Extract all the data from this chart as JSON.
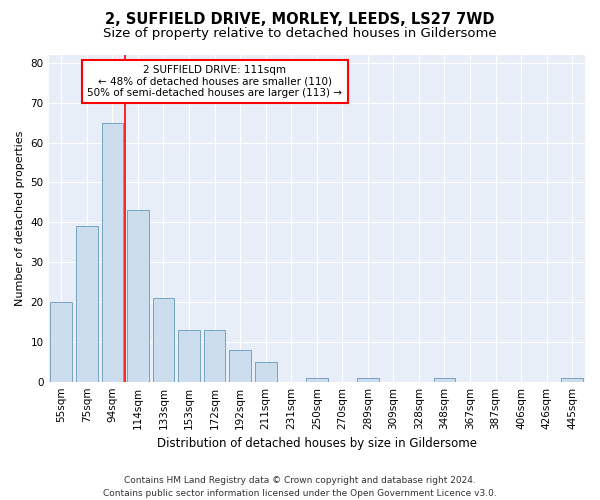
{
  "title1": "2, SUFFIELD DRIVE, MORLEY, LEEDS, LS27 7WD",
  "title2": "Size of property relative to detached houses in Gildersome",
  "xlabel": "Distribution of detached houses by size in Gildersome",
  "ylabel": "Number of detached properties",
  "categories": [
    "55sqm",
    "75sqm",
    "94sqm",
    "114sqm",
    "133sqm",
    "153sqm",
    "172sqm",
    "192sqm",
    "211sqm",
    "231sqm",
    "250sqm",
    "270sqm",
    "289sqm",
    "309sqm",
    "328sqm",
    "348sqm",
    "367sqm",
    "387sqm",
    "406sqm",
    "426sqm",
    "445sqm"
  ],
  "values": [
    20,
    39,
    65,
    43,
    21,
    13,
    13,
    8,
    5,
    0,
    1,
    0,
    1,
    0,
    0,
    1,
    0,
    0,
    0,
    0,
    1
  ],
  "bar_color": "#ccdded",
  "bar_edge_color": "#6699bb",
  "redline_x": 2.5,
  "annotation_line1": "2 SUFFIELD DRIVE: 111sqm",
  "annotation_line2": "← 48% of detached houses are smaller (110)",
  "annotation_line3": "50% of semi-detached houses are larger (113) →",
  "footnote": "Contains HM Land Registry data © Crown copyright and database right 2024.\nContains public sector information licensed under the Open Government Licence v3.0.",
  "ylim": [
    0,
    82
  ],
  "yticks": [
    0,
    10,
    20,
    30,
    40,
    50,
    60,
    70,
    80
  ],
  "plot_bg_color": "#e8eef8",
  "title1_fontsize": 10.5,
  "title2_fontsize": 9.5,
  "xlabel_fontsize": 8.5,
  "ylabel_fontsize": 8,
  "tick_fontsize": 7.5,
  "annotation_fontsize": 7.5,
  "footnote_fontsize": 6.5
}
